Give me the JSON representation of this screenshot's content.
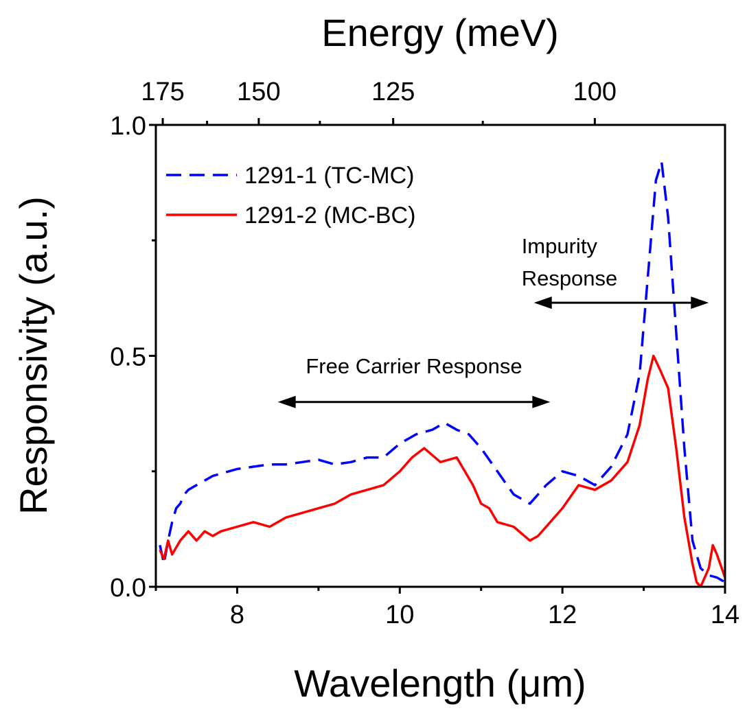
{
  "chart_data": {
    "type": "line",
    "xlabel": "Wavelength (μm)",
    "ylabel": "Responsivity (a.u.)",
    "top_xlabel": "Energy (meV)",
    "xlim": [
      7,
      14
    ],
    "ylim": [
      0,
      1
    ],
    "x_ticks": [
      8,
      10,
      12,
      14
    ],
    "x_tick_labels": [
      "8",
      "10",
      "12",
      "14"
    ],
    "y_ticks": [
      0,
      0.5,
      1
    ],
    "y_tick_labels": [
      "0.0",
      "0.5",
      "1.0"
    ],
    "top_ticks_energy": [
      175,
      150,
      125,
      100
    ],
    "top_tick_labels": [
      "175",
      "150",
      "125",
      "100"
    ],
    "grid": false,
    "legend_position": "top-left",
    "series": [
      {
        "name": "1291-1 (TC-MC)",
        "color": "#0000ff",
        "style": "dashed",
        "x": [
          7.05,
          7.1,
          7.15,
          7.2,
          7.25,
          7.3,
          7.35,
          7.4,
          7.5,
          7.6,
          7.7,
          7.8,
          8.0,
          8.2,
          8.4,
          8.6,
          8.8,
          9.0,
          9.2,
          9.4,
          9.6,
          9.8,
          10.0,
          10.2,
          10.4,
          10.55,
          10.7,
          10.85,
          11.0,
          11.2,
          11.4,
          11.6,
          11.8,
          12.0,
          12.2,
          12.4,
          12.6,
          12.8,
          12.95,
          13.05,
          13.15,
          13.22,
          13.3,
          13.4,
          13.5,
          13.6,
          13.7,
          13.8,
          13.9,
          14.0
        ],
        "values": [
          0.09,
          0.05,
          0.1,
          0.14,
          0.17,
          0.18,
          0.2,
          0.21,
          0.22,
          0.23,
          0.24,
          0.245,
          0.255,
          0.26,
          0.265,
          0.265,
          0.27,
          0.275,
          0.265,
          0.27,
          0.28,
          0.28,
          0.31,
          0.33,
          0.34,
          0.355,
          0.34,
          0.33,
          0.3,
          0.25,
          0.2,
          0.18,
          0.22,
          0.25,
          0.24,
          0.22,
          0.26,
          0.33,
          0.46,
          0.67,
          0.88,
          0.92,
          0.8,
          0.55,
          0.3,
          0.1,
          0.04,
          0.025,
          0.02,
          0.01
        ]
      },
      {
        "name": "1291-2 (MC-BC)",
        "color": "#ff0000",
        "style": "solid",
        "x": [
          7.05,
          7.1,
          7.15,
          7.2,
          7.3,
          7.4,
          7.5,
          7.6,
          7.7,
          7.8,
          8.0,
          8.2,
          8.4,
          8.6,
          8.8,
          9.0,
          9.2,
          9.4,
          9.6,
          9.8,
          10.0,
          10.15,
          10.3,
          10.5,
          10.7,
          10.9,
          11.0,
          11.1,
          11.2,
          11.4,
          11.6,
          11.7,
          11.8,
          12.0,
          12.2,
          12.4,
          12.6,
          12.8,
          12.95,
          13.05,
          13.12,
          13.2,
          13.3,
          13.4,
          13.5,
          13.6,
          13.65,
          13.7,
          13.8,
          13.85,
          13.9,
          14.0
        ],
        "values": [
          0.08,
          0.06,
          0.1,
          0.07,
          0.1,
          0.12,
          0.1,
          0.12,
          0.11,
          0.12,
          0.13,
          0.14,
          0.13,
          0.15,
          0.16,
          0.17,
          0.18,
          0.2,
          0.21,
          0.22,
          0.25,
          0.28,
          0.3,
          0.27,
          0.28,
          0.22,
          0.18,
          0.17,
          0.14,
          0.13,
          0.1,
          0.11,
          0.13,
          0.17,
          0.22,
          0.21,
          0.23,
          0.27,
          0.35,
          0.45,
          0.5,
          0.47,
          0.43,
          0.3,
          0.15,
          0.05,
          0.01,
          0.0,
          0.04,
          0.09,
          0.07,
          0.02
        ]
      }
    ],
    "annotations": [
      {
        "text": "Free Carrier Response",
        "x_from": 8.5,
        "x_to": 11.85,
        "y": 0.4
      },
      {
        "lines": [
          "Impurity",
          "Response"
        ],
        "x_from": 11.65,
        "x_to": 13.8,
        "y": 0.615
      }
    ]
  }
}
